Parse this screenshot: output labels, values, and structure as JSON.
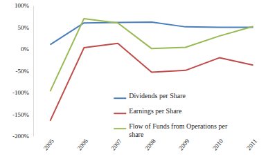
{
  "chart_data": {
    "type": "line",
    "categories": [
      "2005",
      "2006",
      "2007",
      "2008",
      "2009",
      "2010",
      "2011"
    ],
    "series": [
      {
        "name": "Dividends per Share",
        "color": "#4a7ebb",
        "values": [
          10,
          60,
          61,
          62,
          51,
          50,
          50
        ]
      },
      {
        "name": "Earnings per Share",
        "color": "#be4b48",
        "values": [
          -165,
          3,
          13,
          -53,
          -49,
          -20,
          -37
        ]
      },
      {
        "name": "Flow of Funds from Operations per share",
        "color": "#98b954",
        "values": [
          -97,
          70,
          60,
          1,
          4,
          30,
          52
        ]
      }
    ],
    "ylim": [
      -200,
      100
    ],
    "yticks": [
      {
        "value": -200,
        "label": "-200%"
      },
      {
        "value": -150,
        "label": "-150%"
      },
      {
        "value": -100,
        "label": "-100%"
      },
      {
        "value": -50,
        "label": "-50%"
      },
      {
        "value": 0,
        "label": "0%"
      },
      {
        "value": 50,
        "label": "50%"
      },
      {
        "value": 100,
        "label": "100%"
      }
    ],
    "grid": false,
    "legend": "center"
  }
}
